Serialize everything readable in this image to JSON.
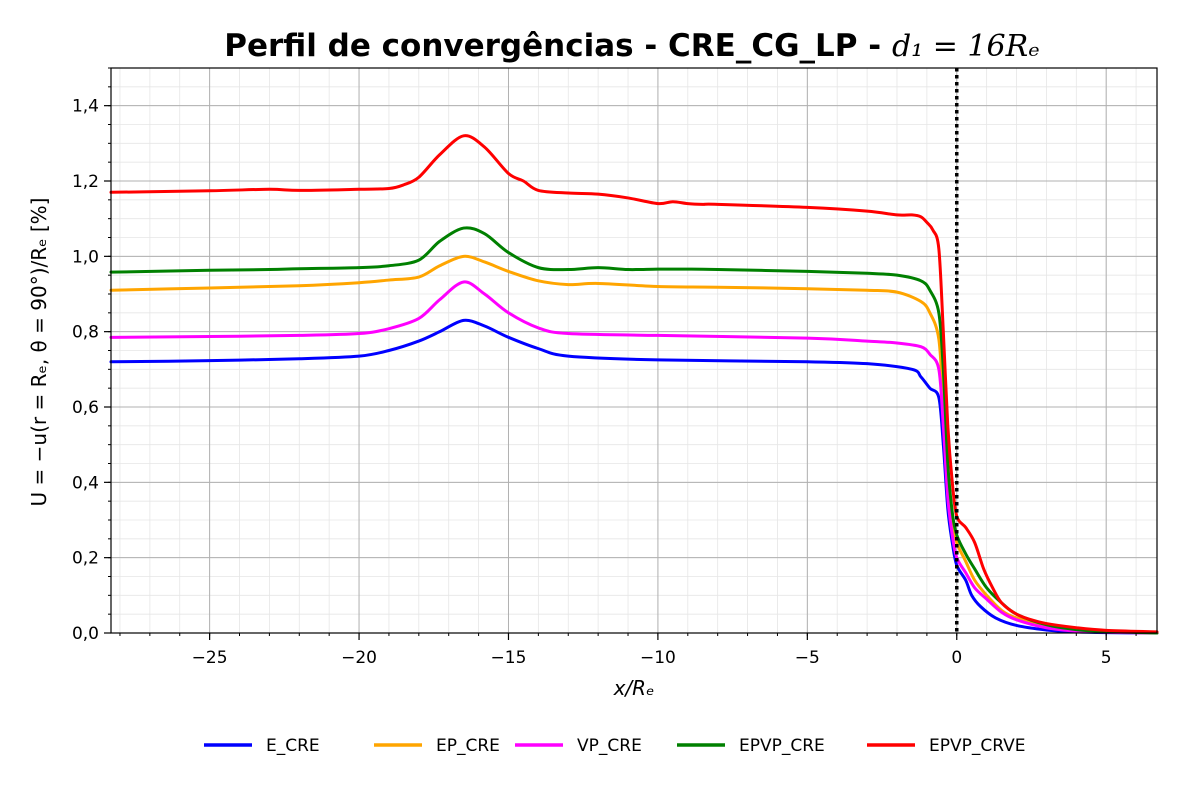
{
  "chart_data": {
    "type": "line",
    "title": "Perfil de convergências - CRE_CG_LP - ",
    "title_math": "d₁ = 16Rₑ",
    "xlabel": "x/Rₑ",
    "ylabel": "U = −u(r = Rₑ, θ = 90°)/Rₑ [%]",
    "xlim": [
      -28.3,
      6.7
    ],
    "ylim": [
      0.0,
      1.5
    ],
    "x_ticks": [
      -25,
      -20,
      -15,
      -10,
      -5,
      0,
      5
    ],
    "x_tick_labels": [
      "−25",
      "−20",
      "−15",
      "−10",
      "−5",
      "0",
      "5"
    ],
    "y_ticks": [
      0.0,
      0.2,
      0.4,
      0.6,
      0.8,
      1.0,
      1.2,
      1.4
    ],
    "y_tick_labels": [
      "0,0",
      "0,2",
      "0,4",
      "0,6",
      "0,8",
      "1,0",
      "1,2",
      "1,4"
    ],
    "grid": true,
    "minor_grid": true,
    "vertical_reference_line": {
      "x": 0,
      "style": "dotted",
      "color": "#000000"
    },
    "legend_position": "bottom-center",
    "series": [
      {
        "name": "E_CRE",
        "color": "#0000ff",
        "x": [
          -28.3,
          -25,
          -22,
          -20,
          -19,
          -18,
          -17.3,
          -16.5,
          -15.8,
          -15,
          -14,
          -13,
          -10,
          -5,
          -3,
          -1.5,
          -1.2,
          -0.9,
          -0.6,
          -0.45,
          -0.3,
          -0.15,
          0,
          0.3,
          0.5,
          0.8,
          1.3,
          2,
          3,
          4,
          5,
          6.7
        ],
        "y": [
          0.72,
          0.723,
          0.728,
          0.735,
          0.75,
          0.775,
          0.8,
          0.83,
          0.815,
          0.785,
          0.755,
          0.735,
          0.725,
          0.72,
          0.715,
          0.7,
          0.68,
          0.65,
          0.625,
          0.5,
          0.33,
          0.24,
          0.18,
          0.14,
          0.1,
          0.07,
          0.04,
          0.02,
          0.008,
          0.003,
          0.001,
          0.0
        ]
      },
      {
        "name": "EP_CRE",
        "color": "#ffa500",
        "x": [
          -28.3,
          -25,
          -22,
          -20,
          -19,
          -18,
          -17.3,
          -16.5,
          -15.8,
          -15,
          -14,
          -13,
          -12,
          -10,
          -8,
          -5,
          -3,
          -2,
          -1.2,
          -0.9,
          -0.6,
          -0.45,
          -0.3,
          -0.15,
          0,
          0.3,
          0.6,
          1,
          1.5,
          2,
          3,
          4,
          5,
          6.7
        ],
        "y": [
          0.91,
          0.916,
          0.922,
          0.93,
          0.937,
          0.945,
          0.975,
          1.0,
          0.985,
          0.96,
          0.935,
          0.925,
          0.928,
          0.92,
          0.918,
          0.914,
          0.91,
          0.905,
          0.88,
          0.85,
          0.78,
          0.6,
          0.4,
          0.3,
          0.24,
          0.19,
          0.14,
          0.1,
          0.06,
          0.04,
          0.018,
          0.008,
          0.003,
          0.0
        ]
      },
      {
        "name": "VP_CRE",
        "color": "#ff00ff",
        "x": [
          -28.3,
          -25,
          -22,
          -20,
          -19,
          -18,
          -17.3,
          -16.5,
          -15.8,
          -15,
          -14,
          -13,
          -10,
          -5,
          -3,
          -2,
          -1.2,
          -0.9,
          -0.6,
          -0.45,
          -0.3,
          -0.15,
          0,
          0.3,
          0.6,
          1,
          1.5,
          2,
          3,
          4,
          5,
          6.7
        ],
        "y": [
          0.785,
          0.787,
          0.79,
          0.795,
          0.808,
          0.835,
          0.885,
          0.932,
          0.9,
          0.85,
          0.81,
          0.795,
          0.79,
          0.783,
          0.775,
          0.77,
          0.76,
          0.74,
          0.7,
          0.55,
          0.36,
          0.26,
          0.2,
          0.16,
          0.12,
          0.09,
          0.055,
          0.035,
          0.014,
          0.005,
          0.002,
          0.0
        ]
      },
      {
        "name": "EPVP_CRE",
        "color": "#008000",
        "x": [
          -28.3,
          -25,
          -23,
          -22,
          -20,
          -19,
          -18,
          -17.3,
          -16.5,
          -15.8,
          -15,
          -14,
          -13,
          -12,
          -11,
          -10,
          -9,
          -8,
          -5,
          -3,
          -2,
          -1.2,
          -0.9,
          -0.6,
          -0.45,
          -0.3,
          -0.15,
          0,
          0.3,
          0.6,
          1,
          1.5,
          2,
          3,
          4,
          5,
          6.7
        ],
        "y": [
          0.958,
          0.963,
          0.965,
          0.967,
          0.97,
          0.975,
          0.99,
          1.04,
          1.075,
          1.06,
          1.01,
          0.97,
          0.965,
          0.97,
          0.965,
          0.966,
          0.966,
          0.965,
          0.96,
          0.955,
          0.95,
          0.935,
          0.91,
          0.85,
          0.7,
          0.45,
          0.32,
          0.26,
          0.21,
          0.17,
          0.12,
          0.08,
          0.05,
          0.022,
          0.009,
          0.004,
          0.0
        ]
      },
      {
        "name": "EPVP_CRVE",
        "color": "#ff0000",
        "x": [
          -28.3,
          -25,
          -23,
          -22,
          -20,
          -19,
          -18.5,
          -18,
          -17.3,
          -16.5,
          -15.8,
          -15,
          -14.5,
          -14,
          -13,
          -12,
          -11,
          -10,
          -9.5,
          -9,
          -8.5,
          -8,
          -5,
          -3,
          -2,
          -1.5,
          -1.2,
          -1.0,
          -0.8,
          -0.6,
          -0.45,
          -0.3,
          -0.15,
          0,
          0.3,
          0.6,
          0.9,
          1.2,
          1.5,
          2,
          2.5,
          3,
          4,
          5,
          6.7
        ],
        "y": [
          1.17,
          1.174,
          1.178,
          1.175,
          1.178,
          1.18,
          1.19,
          1.21,
          1.27,
          1.32,
          1.29,
          1.22,
          1.2,
          1.175,
          1.168,
          1.165,
          1.155,
          1.14,
          1.145,
          1.14,
          1.138,
          1.138,
          1.13,
          1.12,
          1.11,
          1.11,
          1.105,
          1.09,
          1.07,
          1.02,
          0.8,
          0.55,
          0.4,
          0.31,
          0.28,
          0.24,
          0.17,
          0.12,
          0.08,
          0.05,
          0.035,
          0.025,
          0.014,
          0.007,
          0.003
        ]
      }
    ]
  }
}
